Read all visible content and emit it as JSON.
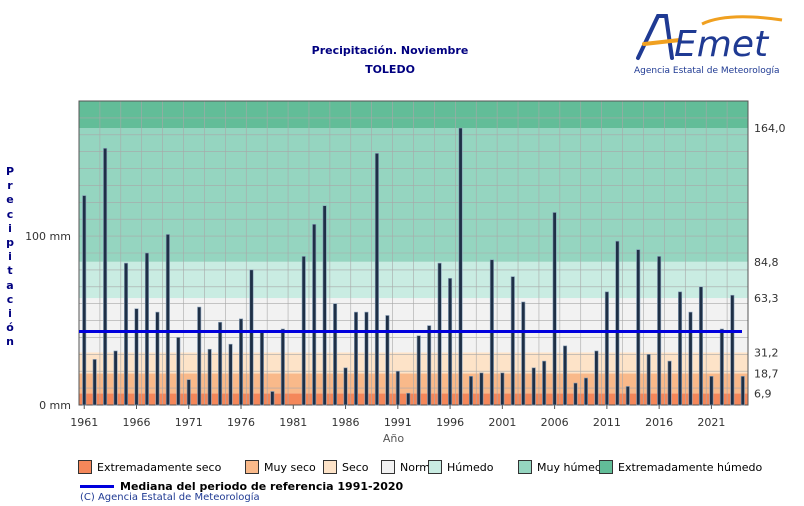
{
  "header": {
    "title": "Precipitación. Noviembre",
    "subtitle": "TOLEDO"
  },
  "logo": {
    "brand": "AEmet",
    "tagline": "Agencia Estatal de Meteorología"
  },
  "footer": {
    "median_label": "Mediana del periodo de referencia 1991-2020",
    "copyright": "(C) Agencia Estatal de Meteorología"
  },
  "legend": [
    {
      "label": "Extremadamente seco",
      "color": "#f4875a"
    },
    {
      "label": "Muy seco",
      "color": "#f9b98a"
    },
    {
      "label": "Seco",
      "color": "#fde3c8"
    },
    {
      "label": "Normal",
      "color": "#f2f2f2"
    },
    {
      "label": "Húmedo",
      "color": "#c9ece2"
    },
    {
      "label": "Muy húmedo",
      "color": "#95d5c0"
    },
    {
      "label": "Extremadamente húmedo",
      "color": "#62bd98"
    }
  ],
  "chart_data": {
    "type": "bar",
    "ylabel": "Precipitación",
    "xlabel": "Año",
    "ylim": [
      0,
      180
    ],
    "y_ticks": [
      {
        "value": 0,
        "label": "0 mm"
      },
      {
        "value": 100,
        "label": "100 mm"
      }
    ],
    "x_ticks": [
      1961,
      1966,
      1971,
      1976,
      1981,
      1986,
      1991,
      1996,
      2001,
      2006,
      2011,
      2016,
      2021
    ],
    "grid": true,
    "median": 43.5,
    "thresholds": [
      {
        "value": 6.9,
        "label": "6,9"
      },
      {
        "value": 18.7,
        "label": "18,7"
      },
      {
        "value": 31.2,
        "label": "31,2"
      },
      {
        "value": 63.3,
        "label": "63,3"
      },
      {
        "value": 84.8,
        "label": "84,8"
      },
      {
        "value": 164.0,
        "label": "164,0"
      }
    ],
    "band_colors": [
      "#f4875a",
      "#f9b98a",
      "#fde3c8",
      "#f2f2f2",
      "#c9ece2",
      "#95d5c0",
      "#62bd98"
    ],
    "bar_color": "#1e2f46",
    "median_color": "#0000dd",
    "years": [
      1961,
      1962,
      1963,
      1964,
      1965,
      1966,
      1967,
      1968,
      1969,
      1970,
      1971,
      1972,
      1973,
      1974,
      1975,
      1976,
      1977,
      1978,
      1979,
      1980,
      1981,
      1982,
      1983,
      1984,
      1985,
      1986,
      1987,
      1988,
      1989,
      1990,
      1991,
      1992,
      1993,
      1994,
      1995,
      1996,
      1997,
      1998,
      1999,
      2000,
      2001,
      2002,
      2003,
      2004,
      2005,
      2006,
      2007,
      2008,
      2009,
      2010,
      2011,
      2012,
      2013,
      2014,
      2015,
      2016,
      2017,
      2018,
      2019,
      2020,
      2021,
      2022,
      2023,
      2024
    ],
    "values": [
      124,
      27,
      152,
      32,
      84,
      57,
      90,
      55,
      101,
      40,
      15,
      58,
      33,
      49,
      36,
      51,
      80,
      44,
      8,
      45,
      0,
      88,
      107,
      118,
      60,
      22,
      55,
      55,
      149,
      53,
      20,
      7,
      41,
      47,
      84,
      75,
      164,
      17,
      19,
      86,
      19,
      76,
      61,
      22,
      26,
      114,
      35,
      13,
      16,
      32,
      67,
      97,
      11,
      92,
      30,
      88,
      26,
      67,
      55,
      70,
      17,
      45,
      65,
      17
    ]
  }
}
